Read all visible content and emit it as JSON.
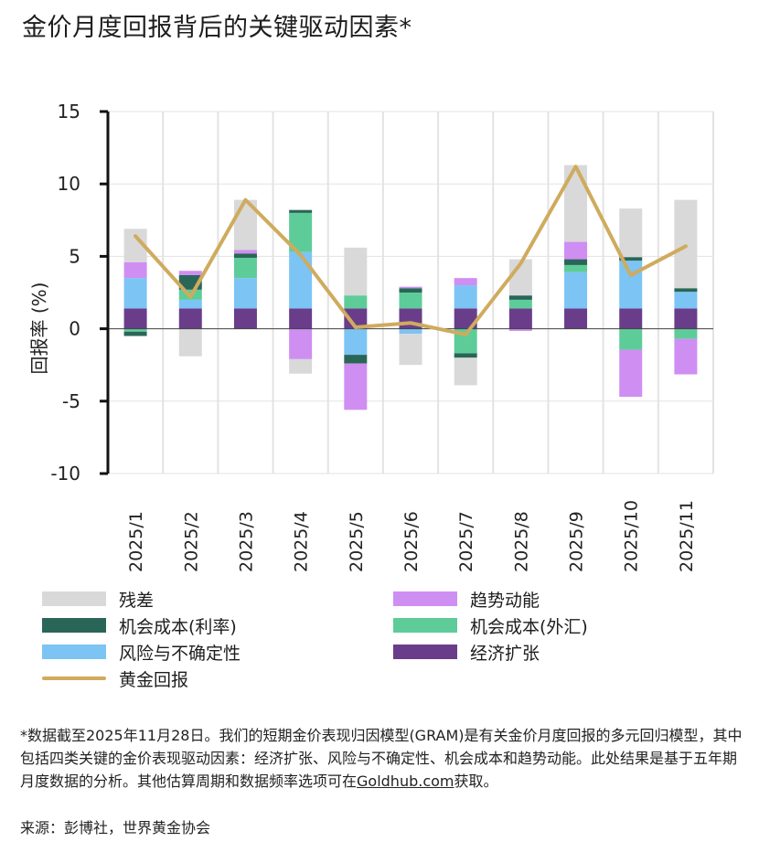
{
  "title": "金价月度回报背后的关键驱动因素*",
  "chart_data": {
    "type": "bar",
    "stacked": true,
    "title": "金价月度回报背后的关键驱动因素*",
    "xlabel": "",
    "ylabel": "回报率 (%)",
    "ylim": [
      -10,
      15
    ],
    "yticks": [
      15,
      10,
      5,
      0,
      -5,
      -10
    ],
    "grid": true,
    "legend_position": "bottom",
    "categories": [
      "2025/1",
      "2025/2",
      "2025/3",
      "2025/4",
      "2025/5",
      "2025/6",
      "2025/7",
      "2025/8",
      "2025/9",
      "2025/10",
      "2025/11"
    ],
    "series": [
      {
        "name": "经济扩张",
        "color": "#6a3d8a",
        "values": [
          1.4,
          1.4,
          1.4,
          1.4,
          1.4,
          1.4,
          1.4,
          1.4,
          1.4,
          1.4,
          1.4
        ]
      },
      {
        "name": "风险与不确定性",
        "color": "#7cc4f4",
        "values": [
          2.1,
          0.6,
          2.1,
          3.9,
          -1.8,
          -0.35,
          1.6,
          0.0,
          2.5,
          3.3,
          1.15
        ]
      },
      {
        "name": "机会成本(外汇)",
        "color": "#5ecc99",
        "values": [
          -0.2,
          0.7,
          1.4,
          2.7,
          0.9,
          1.1,
          -1.7,
          0.6,
          0.5,
          -1.45,
          -0.7
        ]
      },
      {
        "name": "机会成本(利率)",
        "color": "#2a6657",
        "values": [
          -0.3,
          1.0,
          0.3,
          0.2,
          -0.6,
          0.3,
          -0.3,
          0.3,
          0.4,
          0.25,
          0.25
        ]
      },
      {
        "name": "趋势动能",
        "color": "#cf8ef2",
        "values": [
          1.1,
          0.3,
          0.25,
          -2.1,
          -3.2,
          0.1,
          0.5,
          -0.15,
          1.2,
          -3.25,
          -2.45
        ]
      },
      {
        "name": "残差",
        "color": "#d9d9d9",
        "values": [
          2.3,
          -1.9,
          3.45,
          -1.0,
          3.3,
          -2.15,
          -1.9,
          2.5,
          5.3,
          3.35,
          6.1
        ]
      }
    ],
    "line": {
      "name": "黄金回报",
      "color": "#cfab5e",
      "values": [
        6.4,
        2.2,
        8.9,
        5.1,
        0.1,
        0.4,
        -0.4,
        4.5,
        11.2,
        3.7,
        5.7
      ]
    }
  },
  "legend": [
    {
      "label": "残差",
      "color": "#d9d9d9",
      "kind": "bar"
    },
    {
      "label": "趋势动能",
      "color": "#cf8ef2",
      "kind": "bar"
    },
    {
      "label": "机会成本(利率)",
      "color": "#2a6657",
      "kind": "bar"
    },
    {
      "label": "机会成本(外汇)",
      "color": "#5ecc99",
      "kind": "bar"
    },
    {
      "label": "风险与不确定性",
      "color": "#7cc4f4",
      "kind": "bar"
    },
    {
      "label": "经济扩张",
      "color": "#6a3d8a",
      "kind": "bar"
    },
    {
      "label": "黄金回报",
      "color": "#cfab5e",
      "kind": "line"
    }
  ],
  "footnote": {
    "text_before": "*数据截至2025年11月28日。我们的短期金价表现归因模型(GRAM)是有关金价月度回报的多元回归模型，其中包括四类关键的金价表现驱动因素：经济扩张、风险与不确定性、机会成本和趋势动能。此处结果是基于五年期月度数据的分析。其他估算周期和数据频率选项可在",
    "link": "Goldhub.com",
    "text_after": "获取。"
  },
  "source": "来源：彭博社，世界黄金协会"
}
